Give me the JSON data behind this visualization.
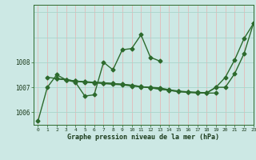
{
  "xlabel": "Graphe pression niveau de la mer (hPa)",
  "bg_color": "#cce8e4",
  "line_color": "#2d6a2d",
  "grid_color_v": "#e8b0b0",
  "grid_color_h": "#aad4cc",
  "ylim": [
    1005.5,
    1010.3
  ],
  "xlim": [
    -0.5,
    23
  ],
  "yticks": [
    1006,
    1007,
    1008
  ],
  "xtick_labels": [
    "0",
    "1",
    "2",
    "3",
    "4",
    "5",
    "6",
    "7",
    "8",
    "9",
    "10",
    "11",
    "12",
    "13",
    "14",
    "15",
    "16",
    "17",
    "18",
    "19",
    "20",
    "21",
    "22",
    "23"
  ],
  "s1_x": [
    0,
    1,
    2,
    3,
    4,
    5,
    6,
    7,
    8,
    9,
    10,
    11,
    12,
    13
  ],
  "s1_y": [
    1005.65,
    1007.0,
    1007.5,
    1007.3,
    1007.2,
    1006.65,
    1006.7,
    1008.0,
    1007.7,
    1008.5,
    1008.55,
    1009.1,
    1008.2,
    1008.05
  ],
  "s2_x": [
    1,
    2,
    3,
    4,
    5,
    6,
    7,
    8,
    9,
    10,
    11,
    12,
    13,
    14,
    15,
    16,
    17,
    18,
    19,
    20,
    21,
    22,
    23
  ],
  "s2_y": [
    1007.4,
    1007.35,
    1007.3,
    1007.25,
    1007.2,
    1007.18,
    1007.15,
    1007.12,
    1007.1,
    1007.05,
    1007.02,
    1007.0,
    1006.98,
    1006.9,
    1006.85,
    1006.82,
    1006.8,
    1006.78,
    1007.0,
    1007.4,
    1008.1,
    1008.95,
    1009.55
  ],
  "s3_x": [
    2,
    3,
    4,
    5,
    6,
    7,
    8,
    9,
    10,
    11,
    12,
    13,
    14,
    15,
    16,
    17,
    18,
    19
  ],
  "s3_y": [
    1007.35,
    1007.3,
    1007.25,
    1007.22,
    1007.2,
    1007.18,
    1007.15,
    1007.12,
    1007.08,
    1007.03,
    1006.98,
    1006.93,
    1006.88,
    1006.83,
    1006.8,
    1006.78,
    1006.77,
    1006.77
  ],
  "s4_x": [
    2,
    3,
    4,
    5,
    6,
    7,
    8,
    9,
    10,
    11,
    12,
    13,
    14,
    15,
    16,
    17,
    18,
    19,
    20,
    21,
    22,
    23
  ],
  "s4_y": [
    1007.35,
    1007.3,
    1007.25,
    1007.22,
    1007.2,
    1007.18,
    1007.15,
    1007.12,
    1007.08,
    1007.03,
    1006.98,
    1006.93,
    1006.88,
    1006.83,
    1006.8,
    1006.78,
    1006.77,
    1007.0,
    1007.0,
    1007.55,
    1008.35,
    1009.55
  ],
  "marker": "D",
  "markersize": 2.5,
  "linewidth": 1.0
}
